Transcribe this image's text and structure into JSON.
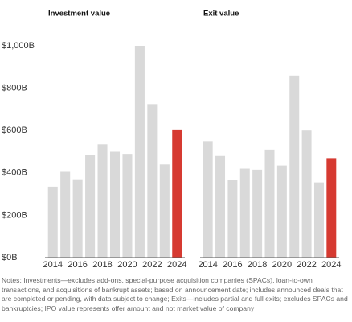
{
  "chart_data": [
    {
      "type": "bar",
      "title": "Investment value",
      "categories": [
        "2014",
        null,
        "2016",
        null,
        "2018",
        null,
        "2020",
        null,
        "2022",
        null,
        "2024"
      ],
      "values": [
        335,
        405,
        370,
        485,
        535,
        500,
        490,
        1000,
        725,
        440,
        605
      ],
      "colors": [
        "#d9d9d9",
        "#d9d9d9",
        "#d9d9d9",
        "#d9d9d9",
        "#d9d9d9",
        "#d9d9d9",
        "#d9d9d9",
        "#d9d9d9",
        "#d9d9d9",
        "#d9d9d9",
        "#d63a31"
      ],
      "ylim": [
        0,
        1000
      ],
      "yticks": [
        {
          "value": 0,
          "label": "$0B"
        },
        {
          "value": 200,
          "label": "$200B"
        },
        {
          "value": 400,
          "label": "$400B"
        },
        {
          "value": 600,
          "label": "$600B"
        },
        {
          "value": 800,
          "label": "$800B"
        },
        {
          "value": 1000,
          "label": "$1,000B"
        }
      ]
    },
    {
      "type": "bar",
      "title": "Exit value",
      "categories": [
        "2014",
        null,
        "2016",
        null,
        "2018",
        null,
        "2020",
        null,
        "2022",
        null,
        "2024"
      ],
      "values": [
        550,
        480,
        365,
        420,
        415,
        510,
        435,
        860,
        600,
        355,
        470
      ],
      "colors": [
        "#d9d9d9",
        "#d9d9d9",
        "#d9d9d9",
        "#d9d9d9",
        "#d9d9d9",
        "#d9d9d9",
        "#d9d9d9",
        "#d9d9d9",
        "#d9d9d9",
        "#d9d9d9",
        "#d63a31"
      ],
      "ylim": [
        0,
        1000
      ]
    }
  ],
  "notes": "Notes: Investments—excludes add-ons, special-purpose acquisition companies (SPACs), loan-to-own transactions, and acquisitions of bankrupt assets; based on announcement date; includes announced deals that are completed or pending, with data subject to change; Exits—includes partial and full exits; excludes SPACs and bankruptcies; IPO value represents offer amount and not market value of company"
}
